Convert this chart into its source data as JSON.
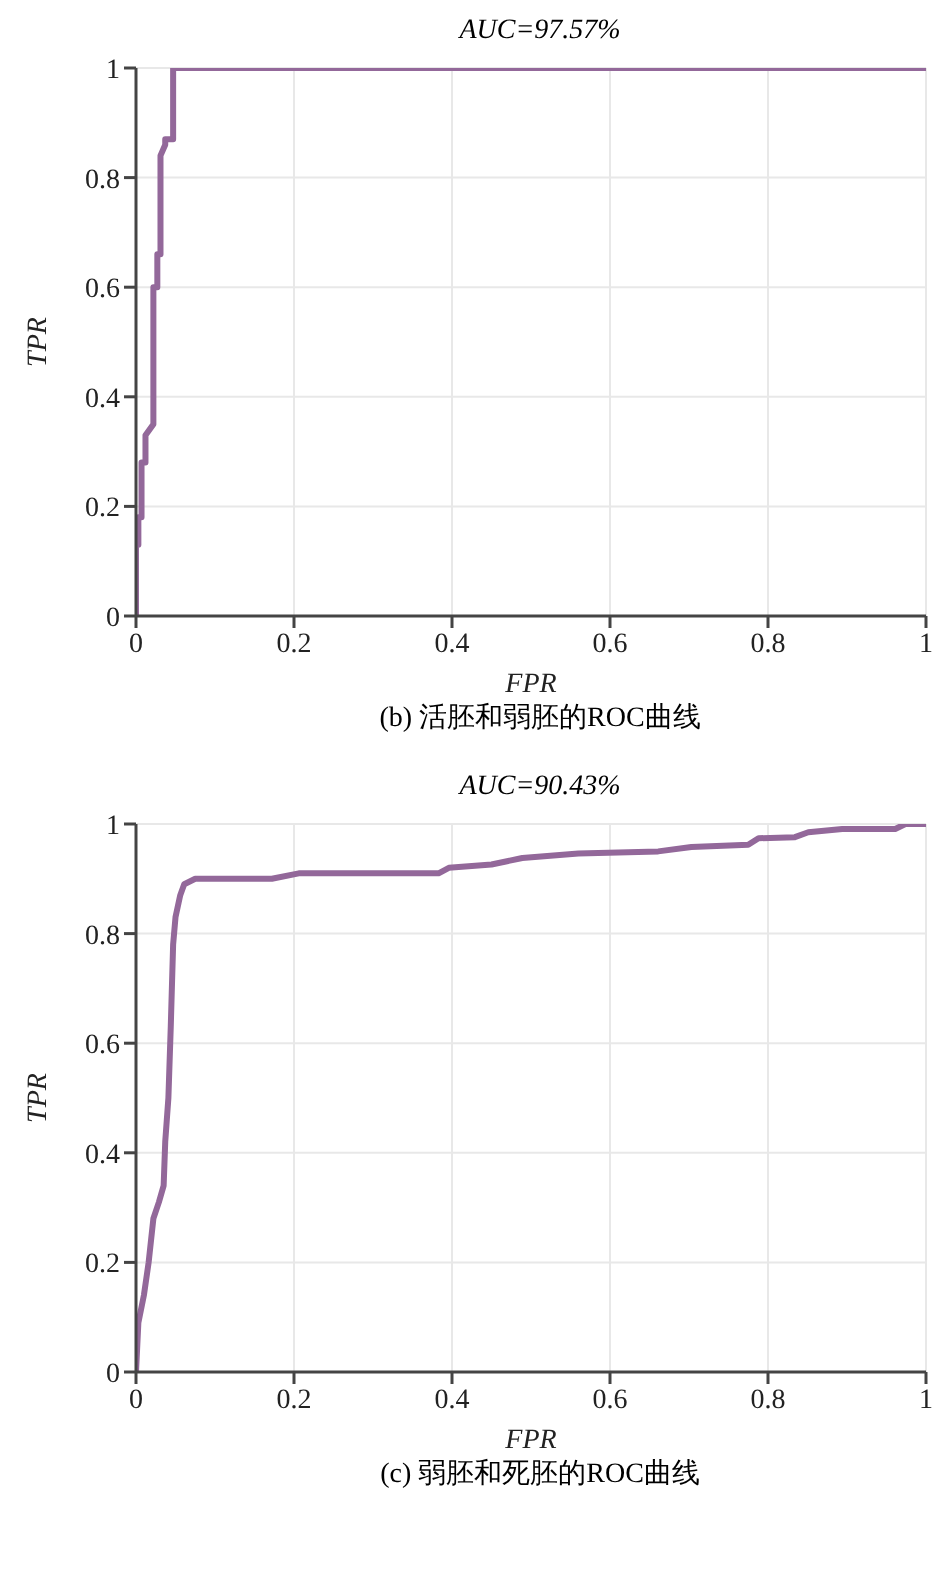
{
  "chart_data": [
    {
      "type": "line",
      "title": "AUC=97.57%",
      "xlabel": "FPR",
      "ylabel": "TPR",
      "annotations": [
        "(b) 活胚和弱胚的ROC曲线"
      ],
      "grid": true,
      "marker": "none",
      "line_style": "solid",
      "xlim": [
        0,
        1
      ],
      "ylim": [
        0,
        1
      ],
      "xticks": [
        0,
        0.2,
        0.4,
        0.6,
        0.8,
        1
      ],
      "yticks": [
        0,
        0.2,
        0.4,
        0.6,
        0.8,
        1
      ],
      "series": [
        {
          "color": "#93689a",
          "x": [
            0,
            0,
            0.003,
            0.003,
            0.007,
            0.007,
            0.012,
            0.012,
            0.022,
            0.022,
            0.027,
            0.027,
            0.031,
            0.031,
            0.037,
            0.037,
            0.047,
            0.047,
            0.23,
            1
          ],
          "values": [
            0,
            0.13,
            0.13,
            0.18,
            0.18,
            0.28,
            0.28,
            0.33,
            0.35,
            0.6,
            0.6,
            0.66,
            0.66,
            0.84,
            0.86,
            0.87,
            0.87,
            1,
            1,
            1
          ]
        }
      ]
    },
    {
      "type": "line",
      "title": "AUC=90.43%",
      "xlabel": "FPR",
      "ylabel": "TPR",
      "annotations": [
        "(c) 弱胚和死胚的ROC曲线"
      ],
      "grid": true,
      "marker": "none",
      "line_style": "solid",
      "xlim": [
        0,
        1
      ],
      "ylim": [
        0,
        1
      ],
      "xticks": [
        0,
        0.2,
        0.4,
        0.6,
        0.8,
        1
      ],
      "yticks": [
        0,
        0.2,
        0.4,
        0.6,
        0.8,
        1
      ],
      "series": [
        {
          "color": "#93689a",
          "x": [
            0,
            0.001,
            0.003,
            0.01,
            0.016,
            0.022,
            0.029,
            0.035,
            0.037,
            0.041,
            0.044,
            0.047,
            0.05,
            0.056,
            0.061,
            0.075,
            0.172,
            0.206,
            0.383,
            0.396,
            0.45,
            0.489,
            0.56,
            0.661,
            0.703,
            0.775,
            0.788,
            0.834,
            0.851,
            0.894,
            0.961,
            0.974,
            1
          ],
          "values": [
            0,
            0.03,
            0.09,
            0.14,
            0.2,
            0.28,
            0.31,
            0.34,
            0.42,
            0.5,
            0.63,
            0.78,
            0.83,
            0.87,
            0.89,
            0.9,
            0.9,
            0.91,
            0.91,
            0.92,
            0.926,
            0.938,
            0.946,
            0.95,
            0.958,
            0.962,
            0.974,
            0.976,
            0.985,
            0.991,
            0.991,
            1,
            1
          ]
        }
      ]
    }
  ]
}
